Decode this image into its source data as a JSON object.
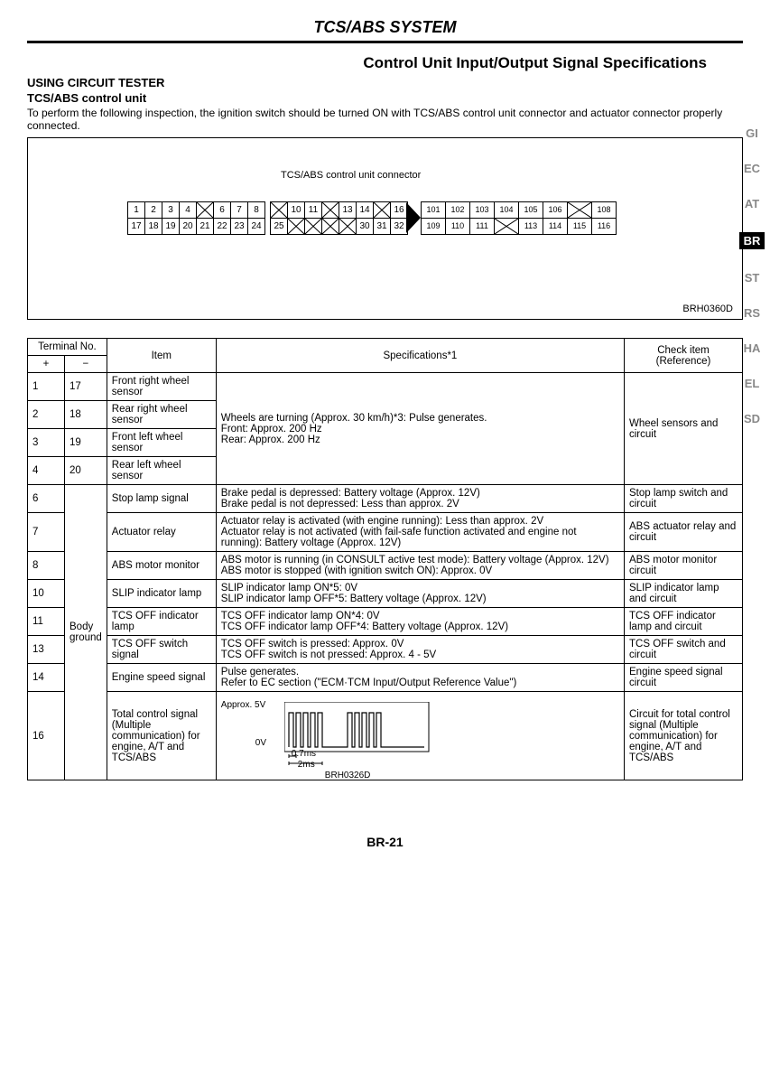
{
  "header": {
    "title": "TCS/ABS SYSTEM"
  },
  "subtitle": "Control Unit Input/Output Signal Specifications",
  "sections": {
    "using": "USING CIRCUIT TESTER",
    "unit": "TCS/ABS control unit",
    "intro": "To perform the following inspection, the ignition switch should be turned ON with TCS/ABS control unit connector and actuator connector properly connected."
  },
  "connector": {
    "label": "TCS/ABS control unit connector",
    "ref": "BRH0360D",
    "row1_left": [
      "1",
      "2",
      "3",
      "4",
      "X",
      "6",
      "7",
      "8"
    ],
    "row1_mid": [
      "X",
      "10",
      "11",
      "X",
      "13",
      "14",
      "X",
      "16"
    ],
    "row1_right": [
      "101",
      "102",
      "103",
      "104",
      "105",
      "106",
      "X",
      "108"
    ],
    "row2_left": [
      "17",
      "18",
      "19",
      "20",
      "21",
      "22",
      "23",
      "24"
    ],
    "row2_mid": [
      "25",
      "X",
      "X",
      "X",
      "X",
      "30",
      "31",
      "32"
    ],
    "row2_right": [
      "109",
      "110",
      "111",
      "X",
      "113",
      "114",
      "115",
      "116"
    ]
  },
  "side_tabs": [
    "GI",
    "EC",
    "AT",
    "BR",
    "ST",
    "RS",
    "HA",
    "EL",
    "SD"
  ],
  "table": {
    "headers": {
      "terminal": "Terminal No.",
      "plus": "+",
      "minus": "−",
      "item": "Item",
      "spec": "Specifications*1",
      "check": "Check item (Reference)"
    },
    "wheel_spec": "Wheels are turning (Approx. 30 km/h)*3: Pulse generates.\nFront: Approx. 200 Hz\nRear: Approx. 200 Hz",
    "wheel_check": "Wheel sensors and circuit",
    "body_ground": "Body ground",
    "rows": [
      {
        "p": "1",
        "m": "17",
        "item": "Front right wheel sensor"
      },
      {
        "p": "2",
        "m": "18",
        "item": "Rear right wheel sensor"
      },
      {
        "p": "3",
        "m": "19",
        "item": "Front left wheel sensor"
      },
      {
        "p": "4",
        "m": "20",
        "item": "Rear left wheel sensor"
      },
      {
        "p": "6",
        "item": "Stop lamp signal",
        "spec": "Brake pedal is depressed: Battery voltage (Approx. 12V)\nBrake pedal is not depressed: Less than approx. 2V",
        "check": "Stop lamp switch and circuit"
      },
      {
        "p": "7",
        "item": "Actuator relay",
        "spec": "Actuator relay is activated (with engine running): Less than approx. 2V\nActuator relay is not activated (with fail-safe function activated and engine not running): Battery voltage (Approx. 12V)",
        "check": "ABS actuator relay and circuit"
      },
      {
        "p": "8",
        "item": "ABS motor monitor",
        "spec": "ABS motor is running (in CONSULT active test mode): Battery voltage (Approx. 12V)\nABS motor is stopped (with ignition switch ON): Approx. 0V",
        "check": "ABS motor monitor circuit"
      },
      {
        "p": "10",
        "item": "SLIP indicator lamp",
        "spec": "SLIP indicator lamp ON*5: 0V\nSLIP indicator lamp OFF*5: Battery voltage (Approx. 12V)",
        "check": "SLIP indicator lamp and circuit"
      },
      {
        "p": "11",
        "item": "TCS OFF indicator lamp",
        "spec": "TCS OFF indicator lamp ON*4: 0V\nTCS OFF indicator lamp OFF*4: Battery voltage (Approx. 12V)",
        "check": "TCS OFF indicator lamp and circuit"
      },
      {
        "p": "13",
        "item": "TCS OFF switch signal",
        "spec": "TCS OFF switch is pressed: Approx. 0V\nTCS OFF switch is not pressed: Approx. 4 - 5V",
        "check": "TCS OFF switch and circuit"
      },
      {
        "p": "14",
        "item": "Engine speed signal",
        "spec": "Pulse generates.\nRefer to EC section (\"ECM·TCM Input/Output Reference Value\")",
        "check": "Engine speed signal circuit"
      },
      {
        "p": "16",
        "item": "Total control signal (Multiple communication) for engine, A/T and TCS/ABS",
        "check": "Circuit for total control signal (Multiple communication) for engine, A/T and TCS/ABS"
      }
    ],
    "waveform": {
      "top": "Approx. 5V",
      "bottom": "0V",
      "t1": "0.7ms",
      "t2": "2ms",
      "ref": "BRH0326D"
    }
  },
  "page": "BR-21"
}
